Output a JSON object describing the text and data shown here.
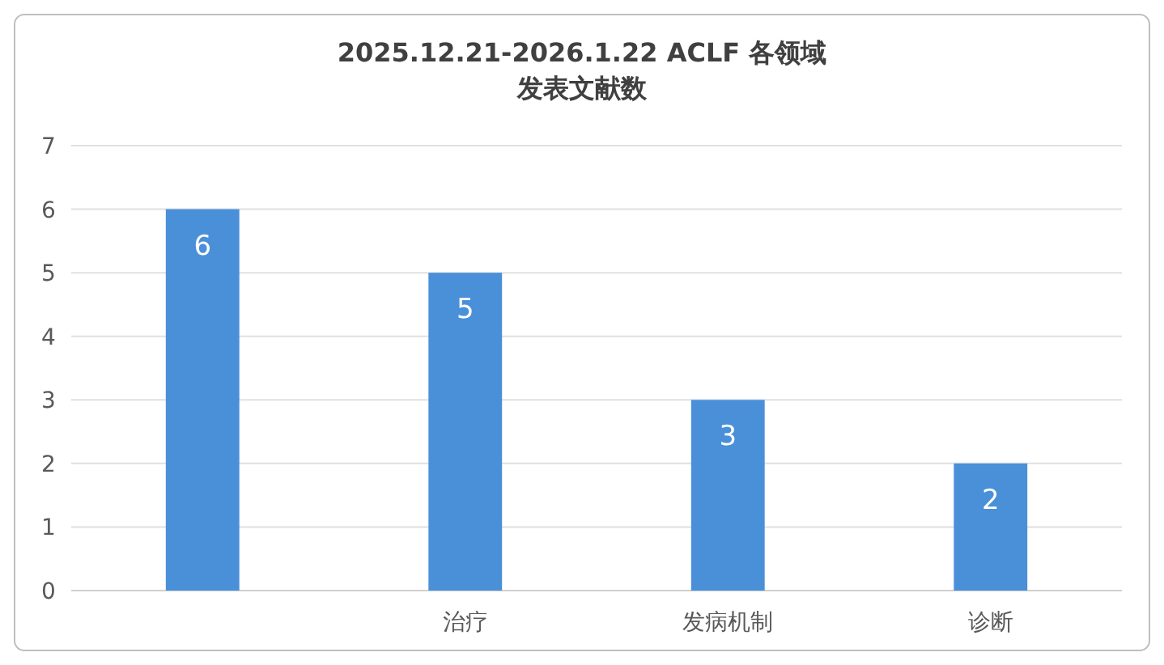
{
  "chart_data": {
    "type": "bar",
    "title": "2025.12.21-2026.1.22 ACLF 各领域",
    "subtitle": "发表文献数",
    "categories": [
      null,
      "治疗",
      "发病机制",
      "诊断"
    ],
    "values": [
      6,
      5,
      3,
      2
    ],
    "color": "#4a90d9",
    "ylim": [
      0,
      7
    ],
    "yticks": [
      0,
      1,
      2,
      3,
      4,
      5,
      6,
      7
    ],
    "grid": "y",
    "data_labels": true
  }
}
